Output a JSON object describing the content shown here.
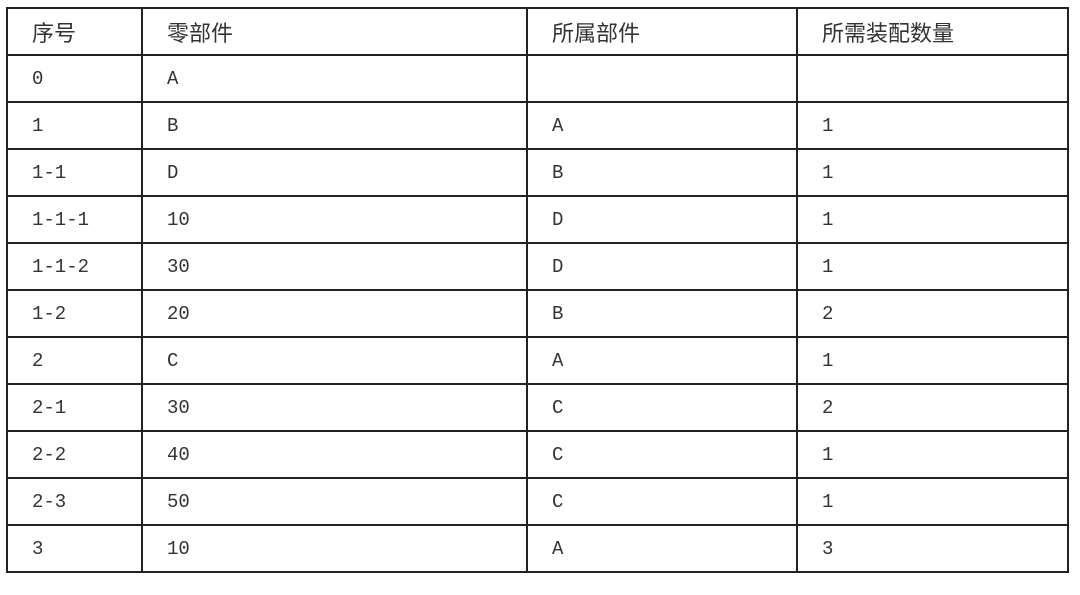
{
  "table": {
    "headers": [
      "序号",
      "零部件",
      "所属部件",
      "所需装配数量"
    ],
    "rows": [
      [
        "0",
        "A",
        "",
        ""
      ],
      [
        "1",
        "B",
        "A",
        "1"
      ],
      [
        "1-1",
        "D",
        "B",
        "1"
      ],
      [
        "1-1-1",
        "10",
        "D",
        "1"
      ],
      [
        "1-1-2",
        "30",
        "D",
        "1"
      ],
      [
        "1-2",
        "20",
        "B",
        "2"
      ],
      [
        "2",
        "C",
        "A",
        "1"
      ],
      [
        "2-1",
        "30",
        "C",
        "2"
      ],
      [
        "2-2",
        "40",
        "C",
        "1"
      ],
      [
        "2-3",
        "50",
        "C",
        "1"
      ],
      [
        "3",
        "10",
        "A",
        "3"
      ]
    ]
  }
}
